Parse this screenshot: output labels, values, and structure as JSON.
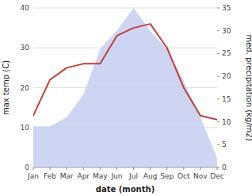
{
  "chart_data": {
    "type": "line",
    "categories": [
      "Jan",
      "Feb",
      "Mar",
      "Apr",
      "May",
      "Jun",
      "Jul",
      "Aug",
      "Sep",
      "Oct",
      "Nov",
      "Dec"
    ],
    "xlabel": "date (month)",
    "ylabel": "max temp (C)",
    "y2label": "med. precipitation (kg/m2)",
    "ylim": [
      0,
      40
    ],
    "yticks": [
      0,
      10,
      20,
      30,
      40
    ],
    "y2lim": [
      0,
      35
    ],
    "y2ticks": [
      0,
      5,
      10,
      15,
      20,
      25,
      30,
      35
    ],
    "grid": true,
    "series": [
      {
        "type": "area",
        "axis": "y2",
        "color": "#c5cef0",
        "values": [
          9,
          9,
          11,
          16,
          26,
          30,
          35,
          30,
          26,
          19,
          11,
          2
        ]
      },
      {
        "type": "line",
        "color": "#c0413a",
        "values": [
          13,
          22,
          25,
          26,
          26,
          33,
          35,
          36,
          30,
          20,
          13,
          12
        ]
      }
    ]
  }
}
